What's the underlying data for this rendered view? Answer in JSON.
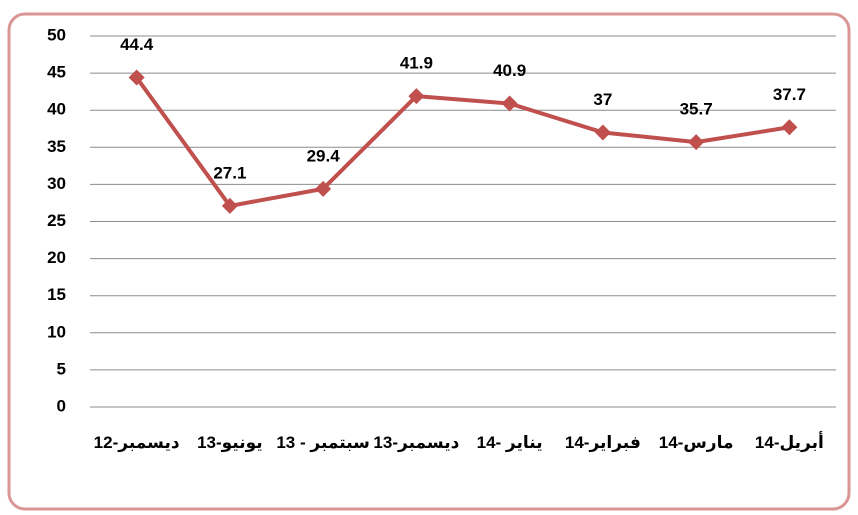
{
  "chart_data": {
    "type": "line",
    "categories": [
      "ديسمبر-12",
      "يونيو-13",
      "سبتمبر - 13",
      "ديسمبر-13",
      "يناير -14",
      "فبراير-14",
      "مارس-14",
      "أبريل-14"
    ],
    "series": [
      {
        "color": "#c0504d",
        "values": [
          44.4,
          27.1,
          29.4,
          41.9,
          40.9,
          37,
          35.7,
          37.7
        ]
      }
    ],
    "ylim": [
      0,
      50
    ],
    "yticks": [
      0,
      5,
      10,
      15,
      20,
      25,
      30,
      35,
      40,
      45,
      50
    ],
    "grid": true
  }
}
